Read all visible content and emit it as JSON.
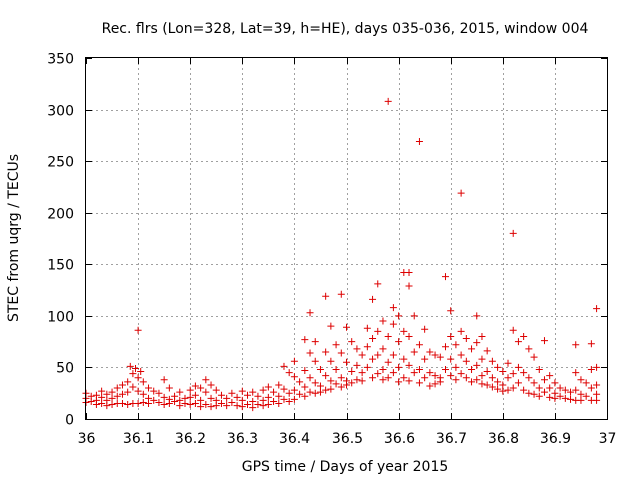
{
  "chart_data": {
    "type": "scatter",
    "title": "Rec. flrs (Lon=328, Lat=39, h=HE), days 035-036, 2015, window 004",
    "xlabel": "GPS time / Days of year 2015",
    "ylabel": "STEC from uqrg / TECUs",
    "xlim": [
      36,
      37
    ],
    "ylim": [
      0,
      350
    ],
    "xticks": [
      "36",
      "36.1",
      "36.2",
      "36.3",
      "36.4",
      "36.5",
      "36.6",
      "36.7",
      "36.8",
      "36.9",
      "37"
    ],
    "yticks": [
      "0",
      "50",
      "100",
      "150",
      "200",
      "250",
      "300",
      "350"
    ],
    "marker": "+",
    "grid": true,
    "colors": {
      "points": "#dd0000",
      "axis": "#000000",
      "grid": "#a0a0a0"
    },
    "series": [
      {
        "name": "STEC",
        "points": [
          [
            36.0,
            25
          ],
          [
            36.0,
            20
          ],
          [
            36.0,
            16
          ],
          [
            36.01,
            22
          ],
          [
            36.01,
            17
          ],
          [
            36.02,
            23
          ],
          [
            36.02,
            18
          ],
          [
            36.02,
            14
          ],
          [
            36.03,
            27
          ],
          [
            36.03,
            21
          ],
          [
            36.03,
            15
          ],
          [
            36.04,
            24
          ],
          [
            36.04,
            18
          ],
          [
            36.04,
            13
          ],
          [
            36.05,
            26
          ],
          [
            36.05,
            20
          ],
          [
            36.05,
            14
          ],
          [
            36.06,
            30
          ],
          [
            36.06,
            22
          ],
          [
            36.06,
            15
          ],
          [
            36.07,
            33
          ],
          [
            36.07,
            24
          ],
          [
            36.07,
            15
          ],
          [
            36.08,
            36
          ],
          [
            36.08,
            26
          ],
          [
            36.08,
            14
          ],
          [
            36.085,
            51
          ],
          [
            36.09,
            44
          ],
          [
            36.09,
            31
          ],
          [
            36.09,
            15
          ],
          [
            36.095,
            49
          ],
          [
            36.1,
            40
          ],
          [
            36.1,
            27
          ],
          [
            36.1,
            15
          ],
          [
            36.1,
            86
          ],
          [
            36.105,
            46
          ],
          [
            36.11,
            36
          ],
          [
            36.11,
            24
          ],
          [
            36.11,
            16
          ],
          [
            36.12,
            30
          ],
          [
            36.12,
            20
          ],
          [
            36.12,
            15
          ],
          [
            36.13,
            27
          ],
          [
            36.13,
            18
          ],
          [
            36.14,
            25
          ],
          [
            36.14,
            16
          ],
          [
            36.15,
            38
          ],
          [
            36.15,
            21
          ],
          [
            36.15,
            14
          ],
          [
            36.16,
            30
          ],
          [
            36.16,
            19
          ],
          [
            36.16,
            15
          ],
          [
            36.17,
            22
          ],
          [
            36.17,
            17
          ],
          [
            36.18,
            26
          ],
          [
            36.18,
            18
          ],
          [
            36.18,
            13
          ],
          [
            36.19,
            20
          ],
          [
            36.19,
            15
          ],
          [
            36.2,
            28
          ],
          [
            36.2,
            21
          ],
          [
            36.2,
            14
          ],
          [
            36.21,
            32
          ],
          [
            36.21,
            23
          ],
          [
            36.21,
            15
          ],
          [
            36.22,
            30
          ],
          [
            36.22,
            18
          ],
          [
            36.22,
            12
          ],
          [
            36.23,
            38
          ],
          [
            36.23,
            26
          ],
          [
            36.23,
            14
          ],
          [
            36.24,
            33
          ],
          [
            36.24,
            20
          ],
          [
            36.24,
            12
          ],
          [
            36.25,
            28
          ],
          [
            36.25,
            18
          ],
          [
            36.25,
            13
          ],
          [
            36.26,
            23
          ],
          [
            36.26,
            15
          ],
          [
            36.27,
            20
          ],
          [
            36.27,
            13
          ],
          [
            36.28,
            25
          ],
          [
            36.28,
            16
          ],
          [
            36.29,
            21
          ],
          [
            36.29,
            13
          ],
          [
            36.3,
            27
          ],
          [
            36.3,
            18
          ],
          [
            36.3,
            12
          ],
          [
            36.31,
            23
          ],
          [
            36.31,
            14
          ],
          [
            36.32,
            26
          ],
          [
            36.32,
            17
          ],
          [
            36.32,
            11
          ],
          [
            36.33,
            22
          ],
          [
            36.33,
            14
          ],
          [
            36.34,
            28
          ],
          [
            36.34,
            18
          ],
          [
            36.34,
            13
          ],
          [
            36.35,
            31
          ],
          [
            36.35,
            21
          ],
          [
            36.35,
            14
          ],
          [
            36.36,
            26
          ],
          [
            36.36,
            17
          ],
          [
            36.37,
            33
          ],
          [
            36.37,
            22
          ],
          [
            36.37,
            15
          ],
          [
            36.38,
            29
          ],
          [
            36.38,
            19
          ],
          [
            36.38,
            51
          ],
          [
            36.39,
            25
          ],
          [
            36.39,
            17
          ],
          [
            36.39,
            45
          ],
          [
            36.4,
            41
          ],
          [
            36.4,
            28
          ],
          [
            36.4,
            19
          ],
          [
            36.4,
            56
          ],
          [
            36.41,
            36
          ],
          [
            36.41,
            24
          ],
          [
            36.42,
            77
          ],
          [
            36.42,
            47
          ],
          [
            36.42,
            31
          ],
          [
            36.42,
            22
          ],
          [
            36.43,
            103
          ],
          [
            36.43,
            64
          ],
          [
            36.43,
            40
          ],
          [
            36.43,
            26
          ],
          [
            36.44,
            56
          ],
          [
            36.44,
            35
          ],
          [
            36.44,
            25
          ],
          [
            36.44,
            75
          ],
          [
            36.45,
            48
          ],
          [
            36.45,
            32
          ],
          [
            36.45,
            26
          ],
          [
            36.46,
            119
          ],
          [
            36.46,
            65
          ],
          [
            36.46,
            42
          ],
          [
            36.46,
            28
          ],
          [
            36.47,
            90
          ],
          [
            36.47,
            56
          ],
          [
            36.47,
            37
          ],
          [
            36.47,
            29
          ],
          [
            36.48,
            48
          ],
          [
            36.48,
            34
          ],
          [
            36.48,
            72
          ],
          [
            36.49,
            121
          ],
          [
            36.49,
            64
          ],
          [
            36.49,
            40
          ],
          [
            36.49,
            31
          ],
          [
            36.5,
            89
          ],
          [
            36.5,
            55
          ],
          [
            36.5,
            37
          ],
          [
            36.5,
            33
          ],
          [
            36.51,
            75
          ],
          [
            36.51,
            46
          ],
          [
            36.51,
            35
          ],
          [
            36.52,
            68
          ],
          [
            36.52,
            52
          ],
          [
            36.52,
            38
          ],
          [
            36.53,
            62
          ],
          [
            36.53,
            45
          ],
          [
            36.53,
            37
          ],
          [
            36.54,
            88
          ],
          [
            36.54,
            70
          ],
          [
            36.54,
            50
          ],
          [
            36.55,
            116
          ],
          [
            36.55,
            78
          ],
          [
            36.55,
            58
          ],
          [
            36.55,
            40
          ],
          [
            36.56,
            131
          ],
          [
            36.56,
            85
          ],
          [
            36.56,
            62
          ],
          [
            36.56,
            44
          ],
          [
            36.57,
            95
          ],
          [
            36.57,
            68
          ],
          [
            36.57,
            48
          ],
          [
            36.57,
            38
          ],
          [
            36.58,
            308
          ],
          [
            36.58,
            80
          ],
          [
            36.58,
            55
          ],
          [
            36.58,
            40
          ],
          [
            36.59,
            108
          ],
          [
            36.59,
            92
          ],
          [
            36.59,
            62
          ],
          [
            36.59,
            45
          ],
          [
            36.6,
            100
          ],
          [
            36.6,
            75
          ],
          [
            36.6,
            50
          ],
          [
            36.6,
            36
          ],
          [
            36.61,
            142
          ],
          [
            36.61,
            85
          ],
          [
            36.61,
            58
          ],
          [
            36.61,
            40
          ],
          [
            36.62,
            129
          ],
          [
            36.62,
            142
          ],
          [
            36.62,
            80
          ],
          [
            36.62,
            52
          ],
          [
            36.62,
            37
          ],
          [
            36.63,
            100
          ],
          [
            36.63,
            65
          ],
          [
            36.63,
            45
          ],
          [
            36.64,
            269
          ],
          [
            36.64,
            72
          ],
          [
            36.64,
            48
          ],
          [
            36.64,
            35
          ],
          [
            36.65,
            87
          ],
          [
            36.65,
            58
          ],
          [
            36.65,
            40
          ],
          [
            36.66,
            65
          ],
          [
            36.66,
            45
          ],
          [
            36.66,
            32
          ],
          [
            36.67,
            62
          ],
          [
            36.67,
            42
          ],
          [
            36.67,
            34
          ],
          [
            36.68,
            60
          ],
          [
            36.68,
            40
          ],
          [
            36.68,
            36
          ],
          [
            36.69,
            138
          ],
          [
            36.69,
            70
          ],
          [
            36.69,
            48
          ],
          [
            36.7,
            105
          ],
          [
            36.7,
            80
          ],
          [
            36.7,
            58
          ],
          [
            36.7,
            42
          ],
          [
            36.71,
            72
          ],
          [
            36.71,
            50
          ],
          [
            36.71,
            38
          ],
          [
            36.72,
            219
          ],
          [
            36.72,
            85
          ],
          [
            36.72,
            62
          ],
          [
            36.72,
            44
          ],
          [
            36.73,
            78
          ],
          [
            36.73,
            56
          ],
          [
            36.73,
            40
          ],
          [
            36.74,
            68
          ],
          [
            36.74,
            48
          ],
          [
            36.74,
            36
          ],
          [
            36.75,
            100
          ],
          [
            36.75,
            74
          ],
          [
            36.75,
            52
          ],
          [
            36.75,
            38
          ],
          [
            36.76,
            80
          ],
          [
            36.76,
            58
          ],
          [
            36.76,
            42
          ],
          [
            36.76,
            34
          ],
          [
            36.77,
            66
          ],
          [
            36.77,
            46
          ],
          [
            36.77,
            33
          ],
          [
            36.78,
            56
          ],
          [
            36.78,
            40
          ],
          [
            36.78,
            31
          ],
          [
            36.79,
            50
          ],
          [
            36.79,
            36
          ],
          [
            36.79,
            29
          ],
          [
            36.8,
            46
          ],
          [
            36.8,
            33
          ],
          [
            36.8,
            27
          ],
          [
            36.81,
            54
          ],
          [
            36.81,
            40
          ],
          [
            36.81,
            28
          ],
          [
            36.82,
            180
          ],
          [
            36.82,
            86
          ],
          [
            36.82,
            44
          ],
          [
            36.82,
            30
          ],
          [
            36.83,
            75
          ],
          [
            36.83,
            50
          ],
          [
            36.83,
            35
          ],
          [
            36.84,
            80
          ],
          [
            36.84,
            45
          ],
          [
            36.84,
            28
          ],
          [
            36.85,
            68
          ],
          [
            36.85,
            40
          ],
          [
            36.85,
            25
          ],
          [
            36.86,
            60
          ],
          [
            36.86,
            35
          ],
          [
            36.86,
            24
          ],
          [
            36.87,
            48
          ],
          [
            36.87,
            30
          ],
          [
            36.87,
            22
          ],
          [
            36.88,
            76
          ],
          [
            36.88,
            38
          ],
          [
            36.88,
            26
          ],
          [
            36.89,
            42
          ],
          [
            36.89,
            30
          ],
          [
            36.89,
            21
          ],
          [
            36.9,
            35
          ],
          [
            36.9,
            25
          ],
          [
            36.9,
            20
          ],
          [
            36.91,
            30
          ],
          [
            36.91,
            22
          ],
          [
            36.92,
            28
          ],
          [
            36.92,
            20
          ],
          [
            36.93,
            26
          ],
          [
            36.93,
            19
          ],
          [
            36.94,
            72
          ],
          [
            36.94,
            45
          ],
          [
            36.94,
            28
          ],
          [
            36.94,
            18
          ],
          [
            36.95,
            38
          ],
          [
            36.95,
            24
          ],
          [
            36.95,
            18
          ],
          [
            36.96,
            35
          ],
          [
            36.96,
            22
          ],
          [
            36.97,
            73
          ],
          [
            36.97,
            48
          ],
          [
            36.97,
            30
          ],
          [
            36.97,
            18
          ],
          [
            36.98,
            107
          ],
          [
            36.98,
            50
          ],
          [
            36.98,
            33
          ],
          [
            36.98,
            24
          ],
          [
            36.98,
            18
          ]
        ]
      }
    ]
  }
}
